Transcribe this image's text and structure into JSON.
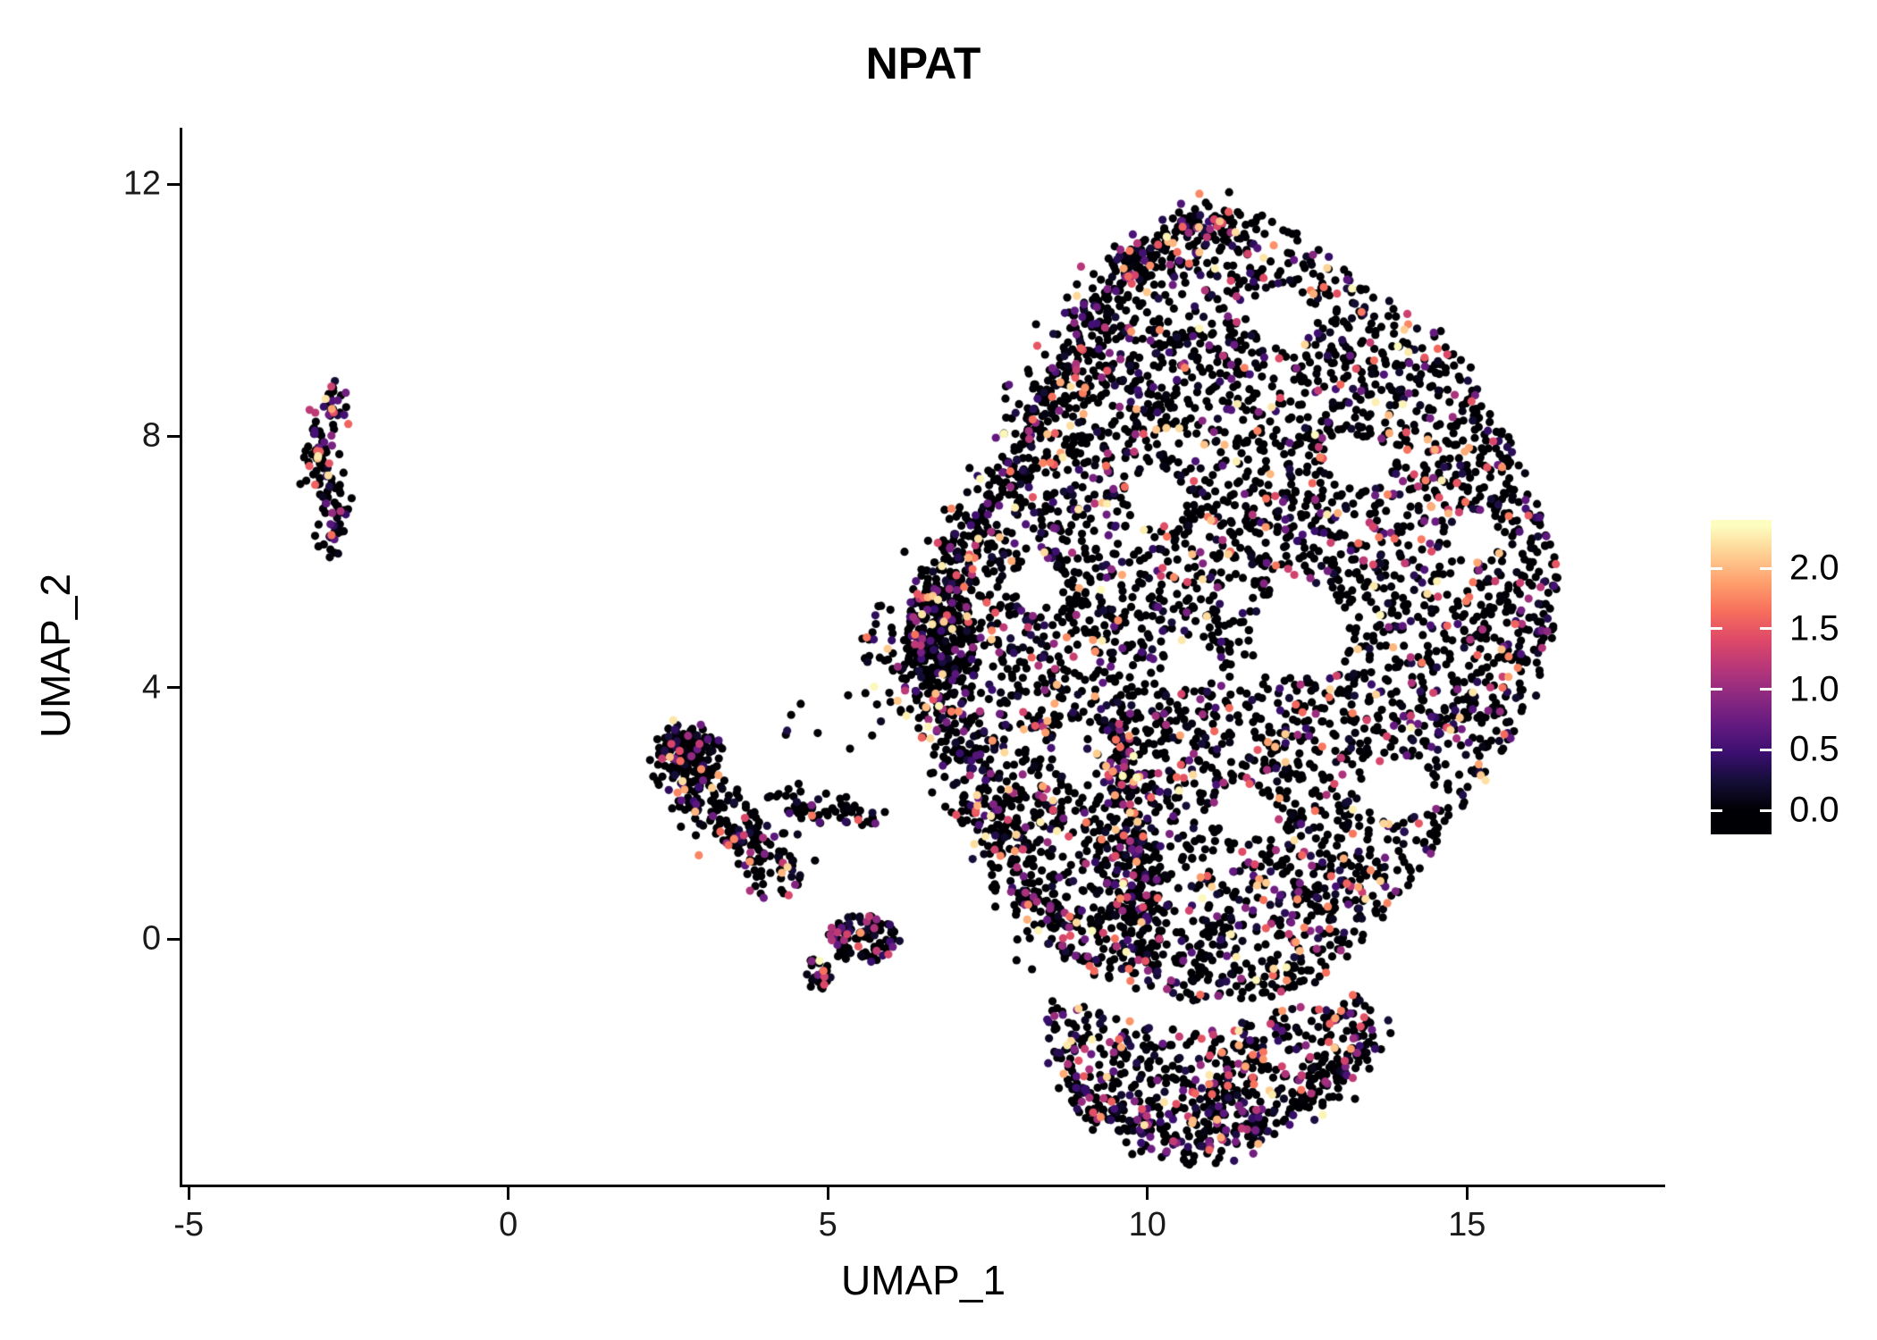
{
  "title": "NPAT",
  "chart_data": {
    "type": "scatter",
    "title": "NPAT",
    "xlabel": "UMAP_1",
    "ylabel": "UMAP_2",
    "xlim": [
      -5.1,
      18.1
    ],
    "ylim": [
      -3.9,
      12.9
    ],
    "x_ticks": [
      -5,
      0,
      5,
      10,
      15
    ],
    "x_tick_labels": [
      "-5",
      "0",
      "5",
      "10",
      "15"
    ],
    "y_ticks": [
      0,
      4,
      8,
      12
    ],
    "y_tick_labels": [
      "0",
      "4",
      "8",
      "12"
    ],
    "grid": false,
    "background": "#ffffff",
    "axis_color": "#000000",
    "tick_label_color": "#1a1a1a",
    "legend": {
      "position": "right",
      "tick_values": [
        2.0,
        1.5,
        1.0,
        0.5,
        0.0
      ],
      "tick_labels": [
        "2.0",
        "1.5",
        "1.0",
        "0.5",
        "0.0"
      ]
    },
    "colormap": [
      "#000004",
      "#140e36",
      "#3b0f70",
      "#641a80",
      "#8c2981",
      "#b73779",
      "#de4968",
      "#f76f5c",
      "#fe9f6d",
      "#fecf92",
      "#fcfdbf"
    ],
    "value_max": 2.35,
    "zero_fraction": 0.62,
    "seed": 42,
    "point_radius": 4.6,
    "clusters": [
      {
        "name": "main-blob",
        "type": "polygon",
        "count": 4200,
        "zero_fraction": 0.62,
        "vertices": [
          [
            6.2,
            4.7
          ],
          [
            6.6,
            5.8
          ],
          [
            7.4,
            6.9
          ],
          [
            8.3,
            8.6
          ],
          [
            9.0,
            10.0
          ],
          [
            9.6,
            10.9
          ],
          [
            10.3,
            11.4
          ],
          [
            11.2,
            11.7
          ],
          [
            12.2,
            11.4
          ],
          [
            12.9,
            10.8
          ],
          [
            13.5,
            10.3
          ],
          [
            14.3,
            10.0
          ],
          [
            15.0,
            9.2
          ],
          [
            15.6,
            8.2
          ],
          [
            16.1,
            7.1
          ],
          [
            16.45,
            5.8
          ],
          [
            16.4,
            4.7
          ],
          [
            16.0,
            3.6
          ],
          [
            15.3,
            2.5
          ],
          [
            14.6,
            1.6
          ],
          [
            13.9,
            0.6
          ],
          [
            13.3,
            -0.2
          ],
          [
            12.5,
            -0.8
          ],
          [
            11.6,
            -1.0
          ],
          [
            10.7,
            -1.0
          ],
          [
            9.9,
            -0.7
          ],
          [
            9.2,
            -0.6
          ],
          [
            8.6,
            -0.1
          ],
          [
            8.2,
            0.6
          ],
          [
            7.6,
            1.7
          ],
          [
            7.0,
            3.0
          ],
          [
            6.5,
            3.9
          ]
        ],
        "holes": [
          [
            12.1,
            9.9,
            0.5
          ],
          [
            10.15,
            7.0,
            0.45
          ],
          [
            12.4,
            4.9,
            0.75
          ],
          [
            10.7,
            4.35,
            0.4
          ],
          [
            9.0,
            2.95,
            0.45
          ],
          [
            13.9,
            2.4,
            0.5
          ],
          [
            15.1,
            6.4,
            0.4
          ],
          [
            11.5,
            2.0,
            0.45
          ],
          [
            13.2,
            7.6,
            0.4
          ],
          [
            8.3,
            5.6,
            0.35
          ]
        ]
      },
      {
        "name": "bottom-lobe",
        "type": "polygon",
        "count": 550,
        "zero_fraction": 0.55,
        "vertices": [
          [
            8.35,
            -1.1
          ],
          [
            8.55,
            -2.0
          ],
          [
            9.0,
            -2.7
          ],
          [
            9.6,
            -3.1
          ],
          [
            10.4,
            -3.35
          ],
          [
            11.3,
            -3.25
          ],
          [
            12.1,
            -2.95
          ],
          [
            12.8,
            -2.5
          ],
          [
            13.4,
            -1.9
          ],
          [
            13.65,
            -1.2
          ],
          [
            13.3,
            -0.8
          ],
          [
            12.5,
            -0.95
          ],
          [
            11.6,
            -1.3
          ],
          [
            10.6,
            -1.45
          ],
          [
            9.7,
            -1.3
          ],
          [
            9.0,
            -1.0
          ],
          [
            8.6,
            -0.85
          ]
        ],
        "holes": []
      },
      {
        "name": "rim-left-bottom",
        "type": "band",
        "path": [
          [
            6.35,
            4.4
          ],
          [
            7.1,
            2.7
          ],
          [
            8.0,
            1.0
          ],
          [
            8.9,
            -0.3
          ]
        ],
        "width": 0.55,
        "count": 330,
        "zero_fraction": 0.6
      },
      {
        "name": "rim-left-top",
        "type": "band",
        "path": [
          [
            6.5,
            5.2
          ],
          [
            7.3,
            6.6
          ],
          [
            8.3,
            8.4
          ],
          [
            9.3,
            10.3
          ]
        ],
        "width": 0.5,
        "count": 280,
        "zero_fraction": 0.6
      },
      {
        "name": "rim-top",
        "type": "band",
        "path": [
          [
            9.5,
            10.5
          ],
          [
            10.5,
            11.3
          ],
          [
            11.3,
            11.5
          ]
        ],
        "width": 0.35,
        "count": 120,
        "zero_fraction": 0.6
      },
      {
        "name": "dense-left-clump",
        "type": "ellipse",
        "center": [
          6.75,
          4.8
        ],
        "rx": 0.55,
        "ry": 0.85,
        "count": 180,
        "zero_fraction": 0.72
      },
      {
        "name": "vertical-strip",
        "type": "band",
        "path": [
          [
            9.55,
            3.6
          ],
          [
            9.7,
            1.6
          ],
          [
            9.95,
            -0.4
          ]
        ],
        "width": 0.5,
        "count": 260,
        "zero_fraction": 0.45
      },
      {
        "name": "lobe-rim",
        "type": "band",
        "path": [
          [
            8.6,
            -2.1
          ],
          [
            9.4,
            -2.95
          ],
          [
            10.5,
            -3.3
          ],
          [
            11.8,
            -3.05
          ],
          [
            12.9,
            -2.35
          ],
          [
            13.5,
            -1.5
          ]
        ],
        "width": 0.35,
        "count": 220,
        "zero_fraction": 0.5
      },
      {
        "name": "isolated-left-cluster",
        "type": "band",
        "path": [
          [
            -2.7,
            8.6
          ],
          [
            -2.95,
            8.0
          ],
          [
            -2.9,
            7.4
          ],
          [
            -2.7,
            6.7
          ],
          [
            -2.75,
            6.2
          ]
        ],
        "width": 0.28,
        "count": 135,
        "zero_fraction": 0.5
      },
      {
        "name": "mid-left-band",
        "type": "band",
        "path": [
          [
            2.55,
            3.15
          ],
          [
            2.8,
            2.5
          ],
          [
            3.4,
            1.9
          ],
          [
            4.0,
            1.25
          ],
          [
            4.35,
            1.1
          ]
        ],
        "width": 0.5,
        "count": 250,
        "zero_fraction": 0.6
      },
      {
        "name": "mid-left-head",
        "type": "ellipse",
        "center": [
          2.85,
          3.0
        ],
        "rx": 0.5,
        "ry": 0.45,
        "count": 90,
        "zero_fraction": 0.6
      },
      {
        "name": "mid-left-tail",
        "type": "band",
        "path": [
          [
            4.2,
            2.25
          ],
          [
            5.0,
            2.05
          ],
          [
            5.75,
            1.9
          ]
        ],
        "width": 0.25,
        "count": 60,
        "zero_fraction": 0.6
      },
      {
        "name": "small-cluster-bottom",
        "type": "ellipse",
        "center": [
          5.55,
          0.0
        ],
        "rx": 0.6,
        "ry": 0.38,
        "count": 100,
        "zero_fraction": 0.5
      },
      {
        "name": "tiny-cluster",
        "type": "ellipse",
        "center": [
          4.85,
          -0.55
        ],
        "rx": 0.2,
        "ry": 0.28,
        "count": 25,
        "zero_fraction": 0.4
      },
      {
        "name": "bridge-sparse",
        "type": "ellipse",
        "center": [
          5.95,
          4.75
        ],
        "rx": 0.5,
        "ry": 0.6,
        "count": 28,
        "zero_fraction": 0.7
      },
      {
        "name": "sparse-scatter",
        "type": "ellipse",
        "center": [
          5.2,
          3.6
        ],
        "rx": 1.0,
        "ry": 0.7,
        "count": 12,
        "zero_fraction": 0.7
      }
    ]
  }
}
